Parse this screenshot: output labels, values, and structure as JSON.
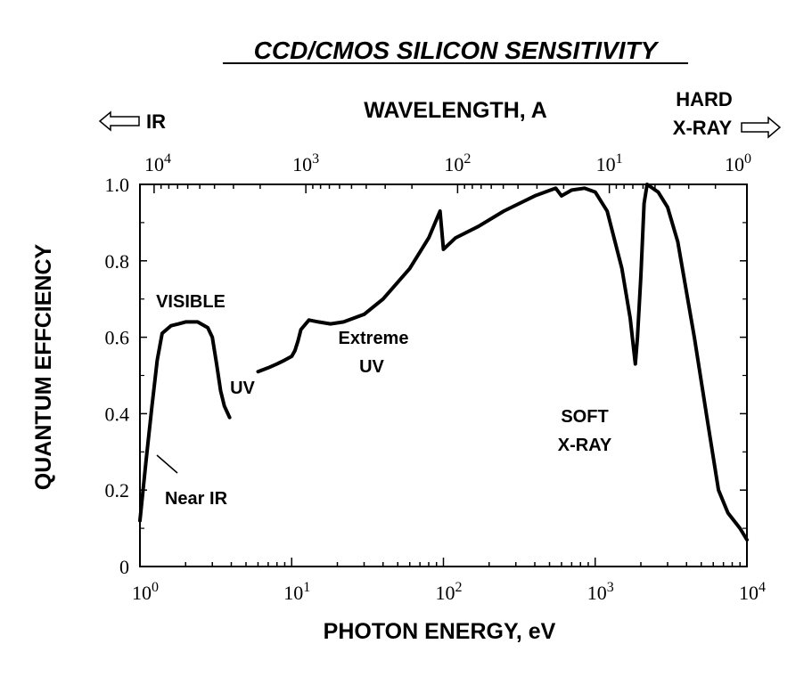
{
  "chart_data": {
    "type": "line",
    "title": "CCD/CMOS SILICON SENSITIVITY",
    "xlabel": "PHOTON ENERGY, eV",
    "ylabel": "QUANTUM EFFCIENCY",
    "x2label": "WAVELENGTH, A",
    "x_scale": "log",
    "xlim": [
      1,
      10000
    ],
    "ylim": [
      0,
      1.0
    ],
    "x_ticks": [
      {
        "base": "10",
        "exp": "0"
      },
      {
        "base": "10",
        "exp": "1"
      },
      {
        "base": "10",
        "exp": "2"
      },
      {
        "base": "10",
        "exp": "3"
      },
      {
        "base": "10",
        "exp": "4"
      }
    ],
    "x2_ticks": [
      {
        "base": "10",
        "exp": "4"
      },
      {
        "base": "10",
        "exp": "3"
      },
      {
        "base": "10",
        "exp": "2"
      },
      {
        "base": "10",
        "exp": "1"
      },
      {
        "base": "10",
        "exp": "0"
      }
    ],
    "y_ticks": [
      "1.0",
      "0.8",
      "0.6",
      "0.4",
      "0.2",
      "0"
    ],
    "series": [
      {
        "segment": "near-ir-visible",
        "points": [
          [
            1.0,
            0.12
          ],
          [
            1.1,
            0.28
          ],
          [
            1.2,
            0.42
          ],
          [
            1.3,
            0.54
          ],
          [
            1.4,
            0.61
          ],
          [
            1.6,
            0.63
          ],
          [
            1.8,
            0.635
          ],
          [
            2.0,
            0.64
          ],
          [
            2.4,
            0.64
          ],
          [
            2.8,
            0.625
          ],
          [
            3.0,
            0.6
          ],
          [
            3.2,
            0.53
          ],
          [
            3.4,
            0.46
          ],
          [
            3.6,
            0.42
          ],
          [
            3.9,
            0.39
          ]
        ]
      },
      {
        "segment": "uv-extreme-soft-xray",
        "points": [
          [
            6.0,
            0.51
          ],
          [
            7.0,
            0.52
          ],
          [
            8.0,
            0.53
          ],
          [
            9.0,
            0.54
          ],
          [
            10.0,
            0.55
          ],
          [
            10.5,
            0.565
          ],
          [
            11.0,
            0.59
          ],
          [
            11.5,
            0.62
          ],
          [
            13.0,
            0.645
          ],
          [
            15.0,
            0.64
          ],
          [
            18.0,
            0.635
          ],
          [
            22.0,
            0.64
          ],
          [
            30.0,
            0.66
          ],
          [
            40.0,
            0.7
          ],
          [
            60.0,
            0.78
          ],
          [
            80.0,
            0.86
          ],
          [
            95.0,
            0.93
          ],
          [
            100.0,
            0.83
          ],
          [
            120.0,
            0.86
          ],
          [
            170.0,
            0.89
          ],
          [
            250.0,
            0.93
          ],
          [
            400.0,
            0.97
          ],
          [
            550.0,
            0.99
          ],
          [
            600.0,
            0.97
          ],
          [
            700.0,
            0.985
          ],
          [
            850.0,
            0.99
          ],
          [
            1000.0,
            0.98
          ],
          [
            1200.0,
            0.93
          ],
          [
            1500.0,
            0.78
          ],
          [
            1700.0,
            0.65
          ],
          [
            1840.0,
            0.53
          ],
          [
            1900.0,
            0.6
          ],
          [
            2000.0,
            0.76
          ],
          [
            2100.0,
            0.95
          ],
          [
            2200.0,
            1.0
          ],
          [
            2600.0,
            0.98
          ],
          [
            3000.0,
            0.94
          ],
          [
            3500.0,
            0.85
          ],
          [
            4500.0,
            0.6
          ],
          [
            5500.0,
            0.38
          ],
          [
            6500.0,
            0.2
          ],
          [
            7500.0,
            0.14
          ],
          [
            9000.0,
            0.1
          ],
          [
            10000.0,
            0.07
          ]
        ]
      }
    ],
    "annotations": [
      "VISIBLE",
      "UV",
      "Extreme",
      "UV",
      "SOFT",
      "X-RAY",
      "Near IR"
    ],
    "region_labels": {
      "ir": "IR",
      "hard_line1": "HARD",
      "hard_line2": "X-RAY"
    },
    "grid": false,
    "curve_color": "#000000"
  }
}
